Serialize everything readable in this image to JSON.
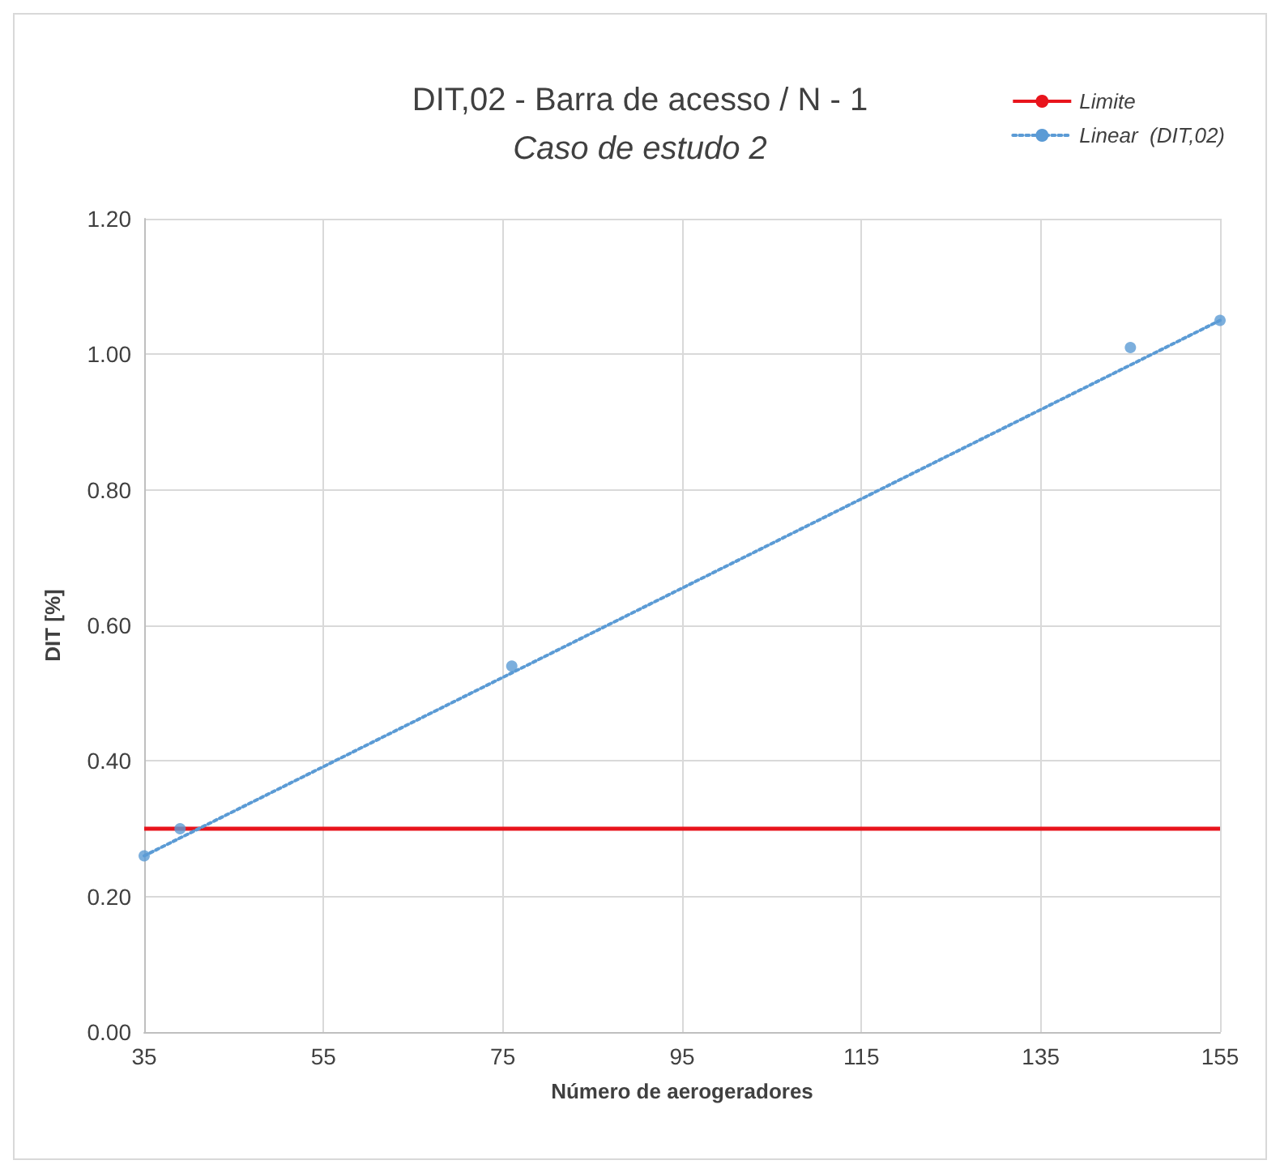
{
  "chart_data": {
    "type": "scatter",
    "title": "DIT,02 - Barra de acesso / N - 1",
    "subtitle": "Caso de estudo 2",
    "xlabel": "Número de aerogeradores",
    "ylabel": "DIT [%]",
    "x": [
      35,
      39,
      76,
      145,
      155
    ],
    "series": [
      {
        "color": "#5b9bd5",
        "marker": "circle",
        "values": [
          0.26,
          0.3,
          0.54,
          1.01,
          1.05
        ]
      },
      {
        "type": "line",
        "name": "Linear  (DIT,02)",
        "color": "#5b9bd5",
        "line_style": "dotted",
        "x": [
          35,
          155
        ],
        "values": [
          0.26,
          1.05
        ]
      }
    ],
    "ref_lines": [
      {
        "axis": "y",
        "value": 0.3,
        "label": "Limite",
        "color": "#e8141c",
        "line_style": "solid"
      }
    ],
    "xlim": [
      35,
      155
    ],
    "xticks": [
      35,
      55,
      75,
      95,
      115,
      135,
      155
    ],
    "ylim": [
      0,
      1.2
    ],
    "yticks": [
      {
        "value": 0,
        "label": "0.00"
      },
      {
        "value": 0.2,
        "label": "0.20"
      },
      {
        "value": 0.4,
        "label": "0.40"
      },
      {
        "value": 0.6,
        "label": "0.60"
      },
      {
        "value": 0.8,
        "label": "0.80"
      },
      {
        "value": 1,
        "label": "1.00"
      },
      {
        "value": 1.2,
        "label": "1.20"
      }
    ],
    "grid": true,
    "legend": "top right"
  }
}
